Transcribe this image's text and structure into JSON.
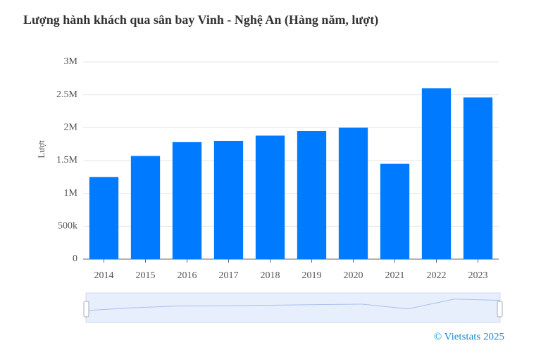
{
  "chart_data": {
    "type": "bar",
    "title": "Lượng hành khách qua sân bay Vinh - Nghệ An (Hàng năm, lượt)",
    "y_label": "Lượt",
    "categories": [
      "2014",
      "2015",
      "2016",
      "2017",
      "2018",
      "2019",
      "2020",
      "2021",
      "2022",
      "2023"
    ],
    "values": [
      1250000,
      1570000,
      1780000,
      1800000,
      1880000,
      1950000,
      2000000,
      1450000,
      2600000,
      2460000
    ],
    "color": "#007bff",
    "ylim": [
      0,
      3000000
    ],
    "yticks": [
      0,
      {
        "value": 500000,
        "label": "500k"
      },
      {
        "value": 1000000,
        "label": "1M"
      },
      {
        "value": 1500000,
        "label": "1.5M"
      },
      {
        "value": 2000000,
        "label": "2M"
      },
      {
        "value": 2500000,
        "label": "2.5M"
      },
      {
        "value": 3000000,
        "label": "3M"
      }
    ],
    "grid": true,
    "credit": "© Vietstats 2025"
  }
}
